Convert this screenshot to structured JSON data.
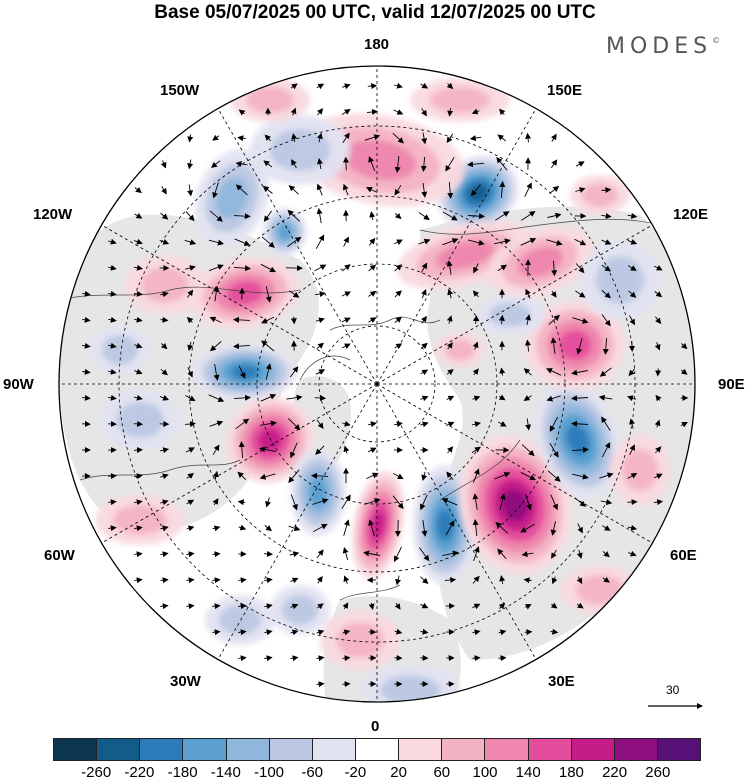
{
  "title": "Base 05/07/2025 00 UTC, valid 12/07/2025 00 UTC",
  "logo": "MODES",
  "logo_mark": "©",
  "longitude_labels": {
    "top": "180",
    "bottom": "0",
    "left": "90W",
    "right": "90E",
    "upper_left_1": "150W",
    "upper_left_2": "120W",
    "lower_left_1": "60W",
    "lower_left_2": "30W",
    "upper_right_1": "150E",
    "upper_right_2": "120E",
    "lower_right_1": "60E",
    "lower_right_2": "30E"
  },
  "reference_vector_label": "30",
  "colorbar": {
    "colors": [
      "#0d3450",
      "#135c8a",
      "#2a7bb8",
      "#5a9fd0",
      "#8fb7dc",
      "#bcc8e3",
      "#e2e3f1",
      "#ffffff",
      "#f9d9df",
      "#f4b3c3",
      "#ee86ad",
      "#e44d9c",
      "#c61c8a",
      "#8e0f7e",
      "#571076"
    ],
    "tick_labels": [
      "-260",
      "-220",
      "-180",
      "-140",
      "-100",
      "-60",
      "-20",
      "20",
      "60",
      "100",
      "140",
      "180",
      "220",
      "260"
    ]
  },
  "chart_data": {
    "type": "heatmap",
    "projection": "north polar stereographic",
    "field": "anomaly with wind vectors",
    "color_range": [
      -260,
      260
    ],
    "anomaly_centers": [
      {
        "region": "Bering Sea / E Siberia",
        "sign": "negative",
        "peak": -200
      },
      {
        "region": "North Pacific near 180",
        "sign": "positive",
        "peak": 120
      },
      {
        "region": "Gulf of Alaska",
        "sign": "negative",
        "peak": -100
      },
      {
        "region": "Western Canada",
        "sign": "positive",
        "peak": 160
      },
      {
        "region": "Hudson Bay",
        "sign": "negative",
        "peak": -180
      },
      {
        "region": "Eastern Canada / Labrador",
        "sign": "positive",
        "peak": 180
      },
      {
        "region": "Central North Atlantic",
        "sign": "negative",
        "peak": -140
      },
      {
        "region": "Iceland / NE Atlantic",
        "sign": "positive",
        "peak": 180
      },
      {
        "region": "Scandinavia",
        "sign": "negative",
        "peak": -180
      },
      {
        "region": "Western Russia",
        "sign": "positive",
        "peak": 200
      },
      {
        "region": "Western Siberia",
        "sign": "negative",
        "peak": -180
      },
      {
        "region": "Central Siberia",
        "sign": "positive",
        "peak": 120
      },
      {
        "region": "NE Siberia",
        "sign": "positive",
        "peak": 120
      }
    ]
  }
}
